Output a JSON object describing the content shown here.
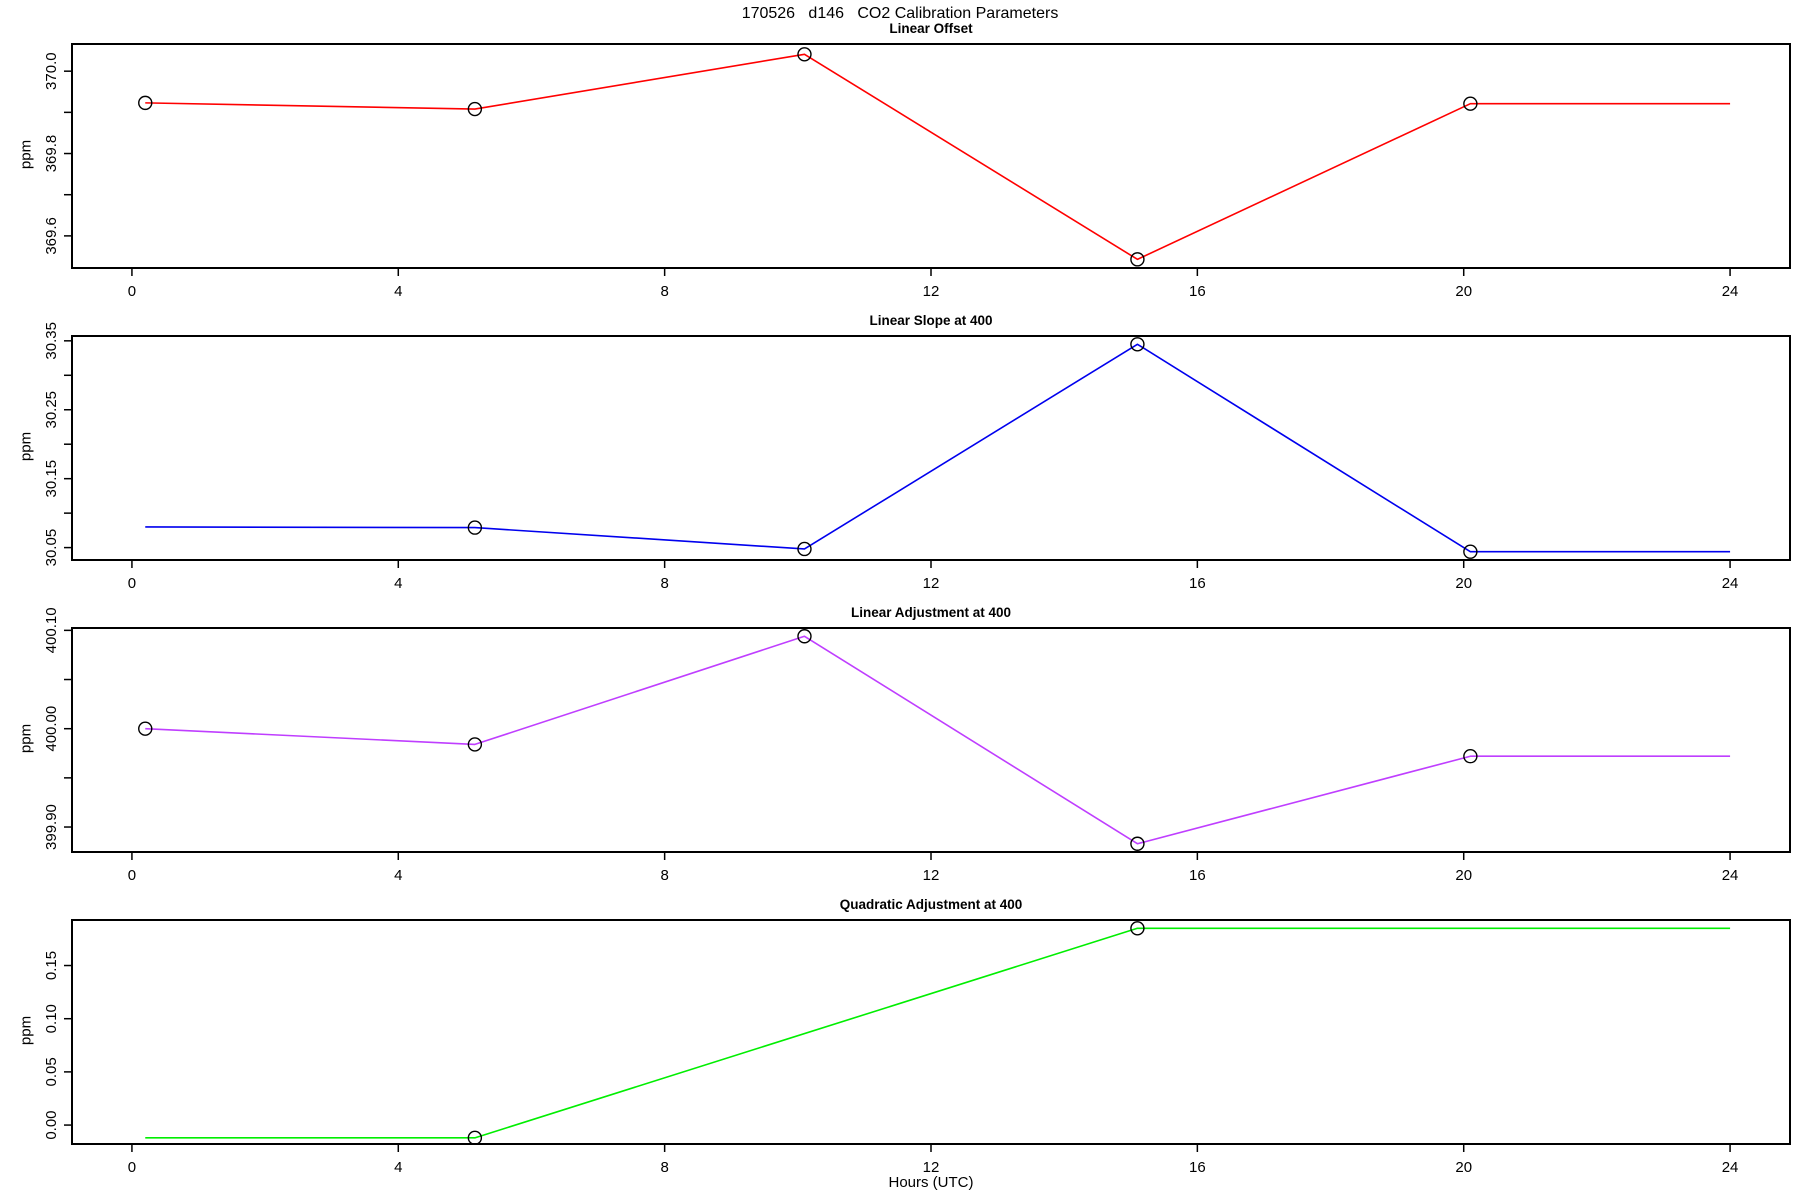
{
  "page_title": "170526   d146   CO2 Calibration Parameters",
  "x_axis": {
    "label": "Hours (UTC)",
    "lim": [
      -0.9,
      24.9
    ],
    "ticks": [
      {
        "v": 0,
        "label": "0"
      },
      {
        "v": 4,
        "label": "4"
      },
      {
        "v": 8,
        "label": "8"
      },
      {
        "v": 12,
        "label": "12"
      },
      {
        "v": 16,
        "label": "16"
      },
      {
        "v": 20,
        "label": "20"
      },
      {
        "v": 24,
        "label": "24"
      }
    ]
  },
  "chart_data": [
    {
      "type": "line",
      "title": "Linear Offset",
      "ylabel": "ppm",
      "line_color": "#FF0000",
      "marker_color": "#000000",
      "x": [
        0.2,
        5.15,
        10.1,
        15.1,
        20.1,
        24
      ],
      "y": [
        369.923,
        369.908,
        370.041,
        369.543,
        369.921,
        369.921
      ],
      "markers_x": [
        0.2,
        5.15,
        10.1,
        15.1,
        20.1
      ],
      "markers_y": [
        369.923,
        369.908,
        370.041,
        369.543,
        369.921
      ],
      "ylim": [
        369.522,
        370.066
      ],
      "yticks": [
        {
          "v": 369.6,
          "label": "369.6"
        },
        {
          "v": 369.7,
          "label": ""
        },
        {
          "v": 369.8,
          "label": "369.8"
        },
        {
          "v": 369.9,
          "label": ""
        },
        {
          "v": 370.0,
          "label": "370.0"
        }
      ]
    },
    {
      "type": "line",
      "title": "Linear Slope at 400",
      "ylabel": "ppm",
      "line_color": "#0000EE",
      "marker_color": "#000000",
      "x": [
        0.2,
        5.15,
        10.1,
        15.1,
        20.1,
        24
      ],
      "y": [
        30.08,
        30.079,
        30.048,
        30.345,
        30.044,
        30.044
      ],
      "markers_x": [
        5.15,
        10.1,
        15.1,
        20.1
      ],
      "markers_y": [
        30.079,
        30.048,
        30.345,
        30.044
      ],
      "ylim": [
        30.032,
        30.357
      ],
      "yticks": [
        {
          "v": 30.05,
          "label": "30.05"
        },
        {
          "v": 30.1,
          "label": ""
        },
        {
          "v": 30.15,
          "label": "30.15"
        },
        {
          "v": 30.2,
          "label": ""
        },
        {
          "v": 30.25,
          "label": "30.25"
        },
        {
          "v": 30.3,
          "label": ""
        },
        {
          "v": 30.35,
          "label": "30.35"
        }
      ]
    },
    {
      "type": "line",
      "title": "Linear Adjustment at 400",
      "ylabel": "ppm",
      "line_color": "#BF3EFF",
      "marker_color": "#000000",
      "x": [
        0.2,
        5.15,
        10.1,
        15.1,
        20.1,
        24
      ],
      "y": [
        400.0,
        399.984,
        400.094,
        399.883,
        399.972,
        399.972
      ],
      "markers_x": [
        0.2,
        5.15,
        10.1,
        15.1,
        20.1
      ],
      "markers_y": [
        400.0,
        399.984,
        400.094,
        399.883,
        399.972
      ],
      "ylim": [
        399.8746,
        400.1024
      ],
      "yticks": [
        {
          "v": 399.9,
          "label": "399.90"
        },
        {
          "v": 399.95,
          "label": ""
        },
        {
          "v": 400.0,
          "label": "400.00"
        },
        {
          "v": 400.05,
          "label": ""
        },
        {
          "v": 400.1,
          "label": "400.10"
        }
      ]
    },
    {
      "type": "line",
      "title": "Quadratic Adjustment at 400",
      "ylabel": "ppm",
      "line_color": "#00EE00",
      "marker_color": "#000000",
      "x": [
        0.2,
        5.15,
        15.1,
        24
      ],
      "y": [
        -0.012,
        -0.012,
        0.185,
        0.185
      ],
      "markers_x": [
        5.15,
        15.1
      ],
      "markers_y": [
        -0.012,
        0.185
      ],
      "ylim": [
        -0.0178,
        0.1928
      ],
      "yticks": [
        {
          "v": 0.0,
          "label": "0.00"
        },
        {
          "v": 0.05,
          "label": "0.05"
        },
        {
          "v": 0.1,
          "label": "0.10"
        },
        {
          "v": 0.15,
          "label": "0.15"
        }
      ]
    }
  ]
}
